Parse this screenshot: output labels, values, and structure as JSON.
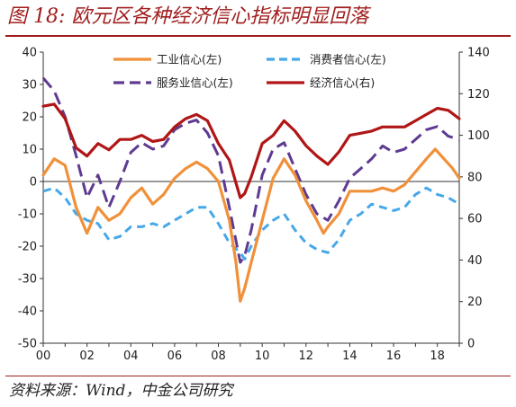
{
  "figure": {
    "title": "图 18: 欧元区各种经济信心指标明显回落",
    "source": "资料来源：Wind，中金公司研究"
  },
  "chart_data": {
    "type": "line",
    "title": "图 18: 欧元区各种经济信心指标明显回落",
    "grid": false,
    "legend_position": "top",
    "x_ticks": [
      "00",
      "02",
      "04",
      "06",
      "08",
      "10",
      "12",
      "14",
      "16",
      "18"
    ],
    "x_range": [
      2000.0,
      2019.0
    ],
    "left_axis": {
      "ylim": [
        -50,
        40
      ],
      "ticks": [
        40,
        30,
        20,
        10,
        0,
        -10,
        -20,
        -30,
        -40,
        -50
      ]
    },
    "right_axis": {
      "ylim": [
        0,
        140
      ],
      "ticks": [
        140,
        120,
        100,
        80,
        60,
        40,
        20,
        0
      ]
    },
    "series": [
      {
        "name": "工业信心(左)",
        "axis": "left",
        "color": "#f0913a",
        "style": "solid",
        "x": [
          2000.0,
          2000.5,
          2001.0,
          2001.5,
          2002.0,
          2002.5,
          2003.0,
          2003.5,
          2004.0,
          2004.5,
          2005.0,
          2005.5,
          2006.0,
          2006.5,
          2007.0,
          2007.5,
          2008.0,
          2008.5,
          2008.8,
          2009.0,
          2009.2,
          2009.5,
          2010.0,
          2010.5,
          2011.0,
          2011.5,
          2012.0,
          2012.5,
          2012.8,
          2013.0,
          2013.5,
          2014.0,
          2014.5,
          2015.0,
          2015.5,
          2016.0,
          2016.5,
          2017.0,
          2017.5,
          2017.9,
          2018.3,
          2018.7,
          2019.0
        ],
        "y": [
          2,
          7,
          5,
          -8,
          -16,
          -8,
          -12,
          -10,
          -5,
          -2,
          -7,
          -4,
          1,
          4,
          6,
          4,
          0,
          -12,
          -25,
          -37,
          -33,
          -25,
          -12,
          1,
          7,
          2,
          -6,
          -12,
          -16,
          -14,
          -10,
          -3,
          -3,
          -3,
          -2,
          -3,
          -1,
          3,
          7,
          10,
          7,
          4,
          1
        ]
      },
      {
        "name": "消费者信心(左)",
        "axis": "left",
        "color": "#47a8e8",
        "style": "dashed",
        "x": [
          2000.0,
          2000.5,
          2001.0,
          2001.5,
          2002.0,
          2002.5,
          2003.0,
          2003.5,
          2004.0,
          2004.5,
          2005.0,
          2005.5,
          2006.0,
          2006.5,
          2007.0,
          2007.5,
          2008.0,
          2008.5,
          2009.0,
          2009.2,
          2009.5,
          2010.0,
          2010.5,
          2011.0,
          2011.5,
          2012.0,
          2012.5,
          2013.0,
          2013.5,
          2014.0,
          2014.5,
          2015.0,
          2015.5,
          2016.0,
          2016.5,
          2017.0,
          2017.5,
          2018.0,
          2018.5,
          2019.0
        ],
        "y": [
          -3,
          -2,
          -5,
          -10,
          -12,
          -13,
          -18,
          -17,
          -14,
          -14,
          -13,
          -14,
          -12,
          -10,
          -8,
          -8,
          -13,
          -19,
          -22,
          -24,
          -20,
          -15,
          -12,
          -10,
          -15,
          -19,
          -21,
          -22,
          -18,
          -12,
          -10,
          -7,
          -8,
          -9,
          -8,
          -4,
          -2,
          -4,
          -5,
          -7
        ]
      },
      {
        "name": "服务业信心(左)",
        "axis": "left",
        "color": "#5e3b91",
        "style": "dashed",
        "x": [
          2000.0,
          2000.5,
          2001.0,
          2001.5,
          2002.0,
          2002.5,
          2003.0,
          2003.5,
          2004.0,
          2004.5,
          2005.0,
          2005.5,
          2006.0,
          2006.5,
          2007.0,
          2007.5,
          2008.0,
          2008.5,
          2009.0,
          2009.2,
          2009.5,
          2010.0,
          2010.5,
          2011.0,
          2011.5,
          2012.0,
          2012.5,
          2013.0,
          2013.5,
          2014.0,
          2014.5,
          2015.0,
          2015.5,
          2016.0,
          2016.5,
          2017.0,
          2017.5,
          2018.0,
          2018.5,
          2019.0
        ],
        "y": [
          32,
          28,
          20,
          8,
          -5,
          2,
          -8,
          0,
          9,
          12,
          10,
          11,
          16,
          18,
          19,
          15,
          8,
          -8,
          -25,
          -23,
          -15,
          2,
          10,
          12,
          4,
          -4,
          -10,
          -12,
          -6,
          1,
          4,
          7,
          11,
          9,
          10,
          13,
          16,
          17,
          14,
          13
        ]
      },
      {
        "name": "经济信心(右)",
        "axis": "right",
        "color": "#b01616",
        "style": "solid",
        "x": [
          2000.0,
          2000.5,
          2001.0,
          2001.5,
          2002.0,
          2002.5,
          2003.0,
          2003.5,
          2004.0,
          2004.5,
          2005.0,
          2005.5,
          2006.0,
          2006.5,
          2007.0,
          2007.5,
          2008.0,
          2008.5,
          2009.0,
          2009.2,
          2009.5,
          2010.0,
          2010.5,
          2011.0,
          2011.5,
          2012.0,
          2012.5,
          2013.0,
          2013.5,
          2014.0,
          2014.5,
          2015.0,
          2015.5,
          2016.0,
          2016.5,
          2017.0,
          2017.5,
          2018.0,
          2018.5,
          2019.0
        ],
        "y": [
          114,
          115,
          108,
          94,
          90,
          96,
          93,
          98,
          98,
          100,
          97,
          98,
          104,
          108,
          110,
          107,
          96,
          88,
          70,
          72,
          80,
          96,
          100,
          107,
          102,
          95,
          90,
          86,
          92,
          100,
          101,
          102,
          104,
          104,
          104,
          107,
          110,
          113,
          112,
          108
        ]
      }
    ]
  }
}
